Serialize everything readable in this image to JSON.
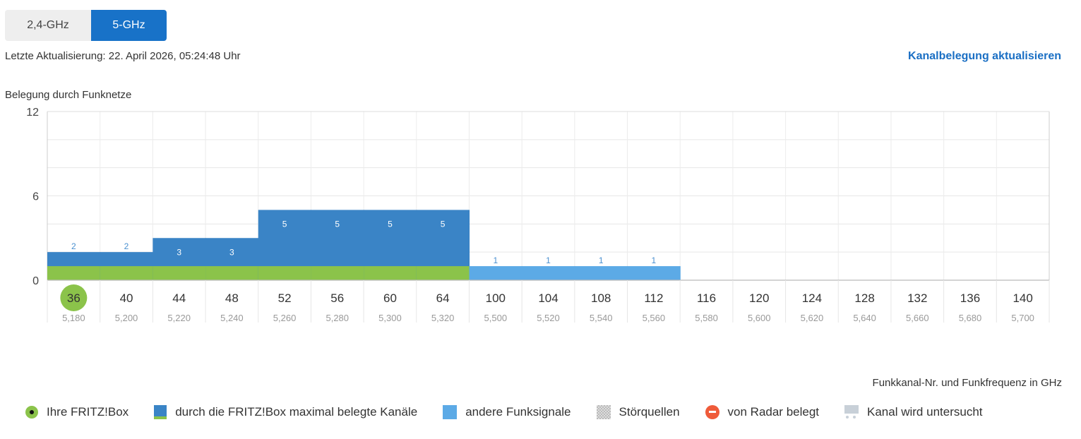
{
  "tabs": [
    {
      "label": "2,4-GHz",
      "active": false
    },
    {
      "label": "5-GHz",
      "active": true
    }
  ],
  "last_update": "Letzte Aktualisierung: 22. April 2026, 05:24:48 Uhr",
  "refresh_link": "Kanalbelegung aktualisieren",
  "chart_title": "Belegung durch Funknetze",
  "axis_note": "Funkkanal-Nr. und Funkfrequenz in GHz",
  "colors": {
    "own": "#3a84c6",
    "own_base": "#8bc34a",
    "other": "#5caae6",
    "own_marker": "#8bc34a",
    "radar": "#ef5b3a",
    "accent": "#1872c8"
  },
  "chart_data": {
    "type": "bar",
    "title": "Belegung durch Funknetze",
    "xlabel": "Funkkanal-Nr. und Funkfrequenz in GHz",
    "ylabel": "",
    "ylim": [
      0,
      12
    ],
    "yticks": [
      0,
      6,
      12
    ],
    "grid": true,
    "categories": [
      "36",
      "40",
      "44",
      "48",
      "52",
      "56",
      "60",
      "64",
      "100",
      "104",
      "108",
      "112",
      "116",
      "120",
      "124",
      "128",
      "132",
      "136",
      "140"
    ],
    "frequencies": [
      "5,180",
      "5,200",
      "5,220",
      "5,240",
      "5,260",
      "5,280",
      "5,300",
      "5,320",
      "5,500",
      "5,520",
      "5,540",
      "5,560",
      "5,580",
      "5,600",
      "5,620",
      "5,640",
      "5,660",
      "5,680",
      "5,700"
    ],
    "own_channel": "36",
    "series": [
      {
        "name": "durch die FRITZ!Box maximal belegte Kanäle",
        "kind": "own",
        "values": [
          2,
          2,
          3,
          3,
          5,
          5,
          5,
          5,
          null,
          null,
          null,
          null,
          null,
          null,
          null,
          null,
          null,
          null,
          null
        ]
      },
      {
        "name": "andere Funksignale",
        "kind": "other",
        "values": [
          null,
          null,
          null,
          null,
          null,
          null,
          null,
          null,
          1,
          1,
          1,
          1,
          null,
          null,
          null,
          null,
          null,
          null,
          null
        ]
      }
    ]
  },
  "legend": [
    {
      "label": "Ihre FRITZ!Box",
      "icon": "own-fritzbox-dot-icon"
    },
    {
      "label": "durch die FRITZ!Box maximal belegte Kanäle",
      "icon": "own-channels-swatch-icon"
    },
    {
      "label": "andere Funksignale",
      "icon": "other-signals-swatch-icon"
    },
    {
      "label": "Störquellen",
      "icon": "interference-pattern-icon"
    },
    {
      "label": "von Radar belegt",
      "icon": "radar-icon"
    },
    {
      "label": "Kanal wird untersucht",
      "icon": "channel-examined-icon"
    }
  ]
}
